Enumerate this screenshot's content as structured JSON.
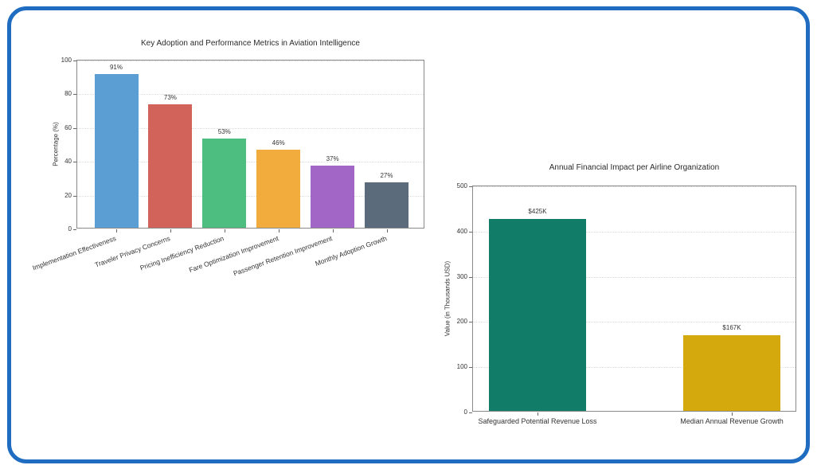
{
  "card": {
    "border_color": "#1f6cc0",
    "background": "#ffffff"
  },
  "chart_data": [
    {
      "type": "bar",
      "title": "Key Adoption and Performance Metrics in Aviation Intelligence",
      "xlabel": "",
      "ylabel": "Percentage (%)",
      "categories": [
        "Implementation Effectiveness",
        "Traveler Privacy Concerns",
        "Pricing Inefficiency Reduction",
        "Fare Optimization Improvement",
        "Passenger Retention Improvement",
        "Monthly Adoption Growth"
      ],
      "values": [
        91,
        73,
        53,
        46,
        37,
        27
      ],
      "value_labels": [
        "91%",
        "73%",
        "53%",
        "46%",
        "37%",
        "27%"
      ],
      "bar_colors": [
        "#5b9ed3",
        "#d2635a",
        "#4dbd80",
        "#f2ab3d",
        "#a266c6",
        "#5b6b7b"
      ],
      "ylim": [
        0,
        100
      ],
      "yticks": [
        0,
        20,
        40,
        60,
        80,
        100
      ],
      "grid": "horizontal-dotted",
      "legend": "none",
      "x_tick_rotation": 20
    },
    {
      "type": "bar",
      "title": "Annual Financial Impact per Airline Organization",
      "xlabel": "",
      "ylabel": "Value (in Thousands USD)",
      "categories": [
        "Safeguarded Potential Revenue Loss",
        "Median Annual Revenue Growth"
      ],
      "values": [
        425,
        167
      ],
      "value_labels": [
        "$425K",
        "$167K"
      ],
      "bar_colors": [
        "#117d68",
        "#d3a90e"
      ],
      "ylim": [
        0,
        500
      ],
      "yticks": [
        0,
        100,
        200,
        300,
        400,
        500
      ],
      "grid": "horizontal-dotted",
      "legend": "none",
      "x_tick_rotation": 0
    }
  ]
}
